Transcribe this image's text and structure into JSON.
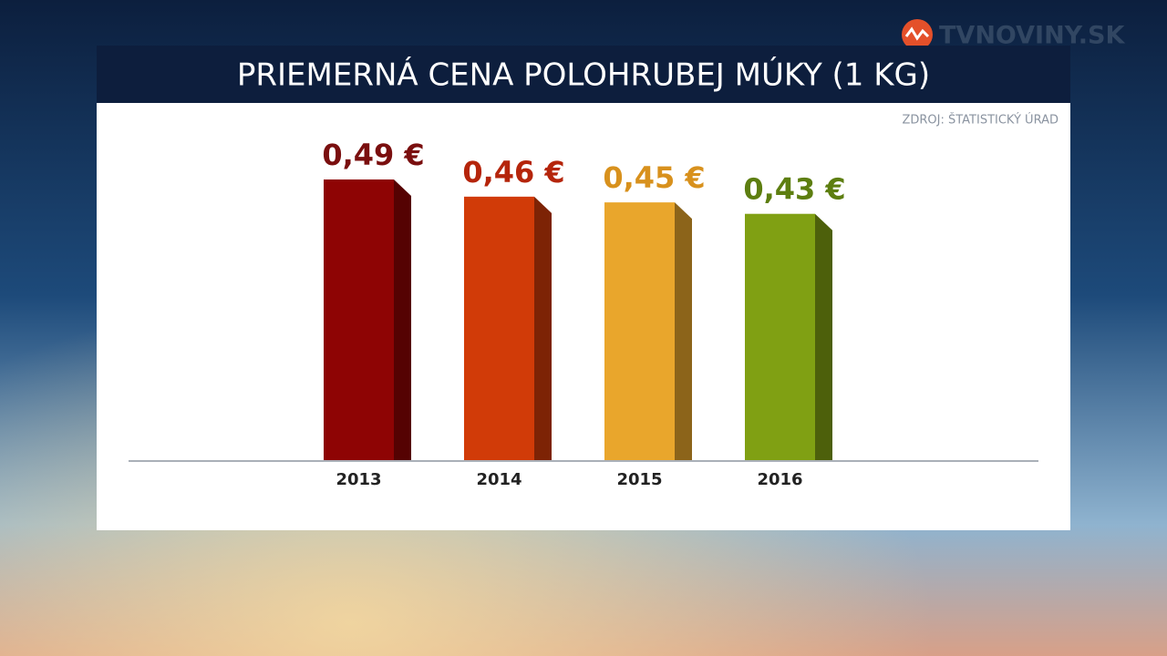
{
  "brand": "TVNOVINY.SK",
  "chart_data": {
    "type": "bar",
    "title": "PRIEMERNÁ CENA POLOHRUBEJ MÚKY (1 KG)",
    "source": "ZDROJ: ŠTATISTICKÝ ÚRAD",
    "categories": [
      "2013",
      "2014",
      "2015",
      "2016"
    ],
    "values": [
      0.49,
      0.46,
      0.45,
      0.43
    ],
    "value_labels": [
      "0,49 €",
      "0,46 €",
      "0,45 €",
      "0,43 €"
    ],
    "colors": [
      "#8e0404",
      "#d13b08",
      "#e9a62c",
      "#80a013"
    ],
    "label_colors": [
      "#7a0f0f",
      "#b5250b",
      "#d8911d",
      "#5d7e10"
    ]
  }
}
